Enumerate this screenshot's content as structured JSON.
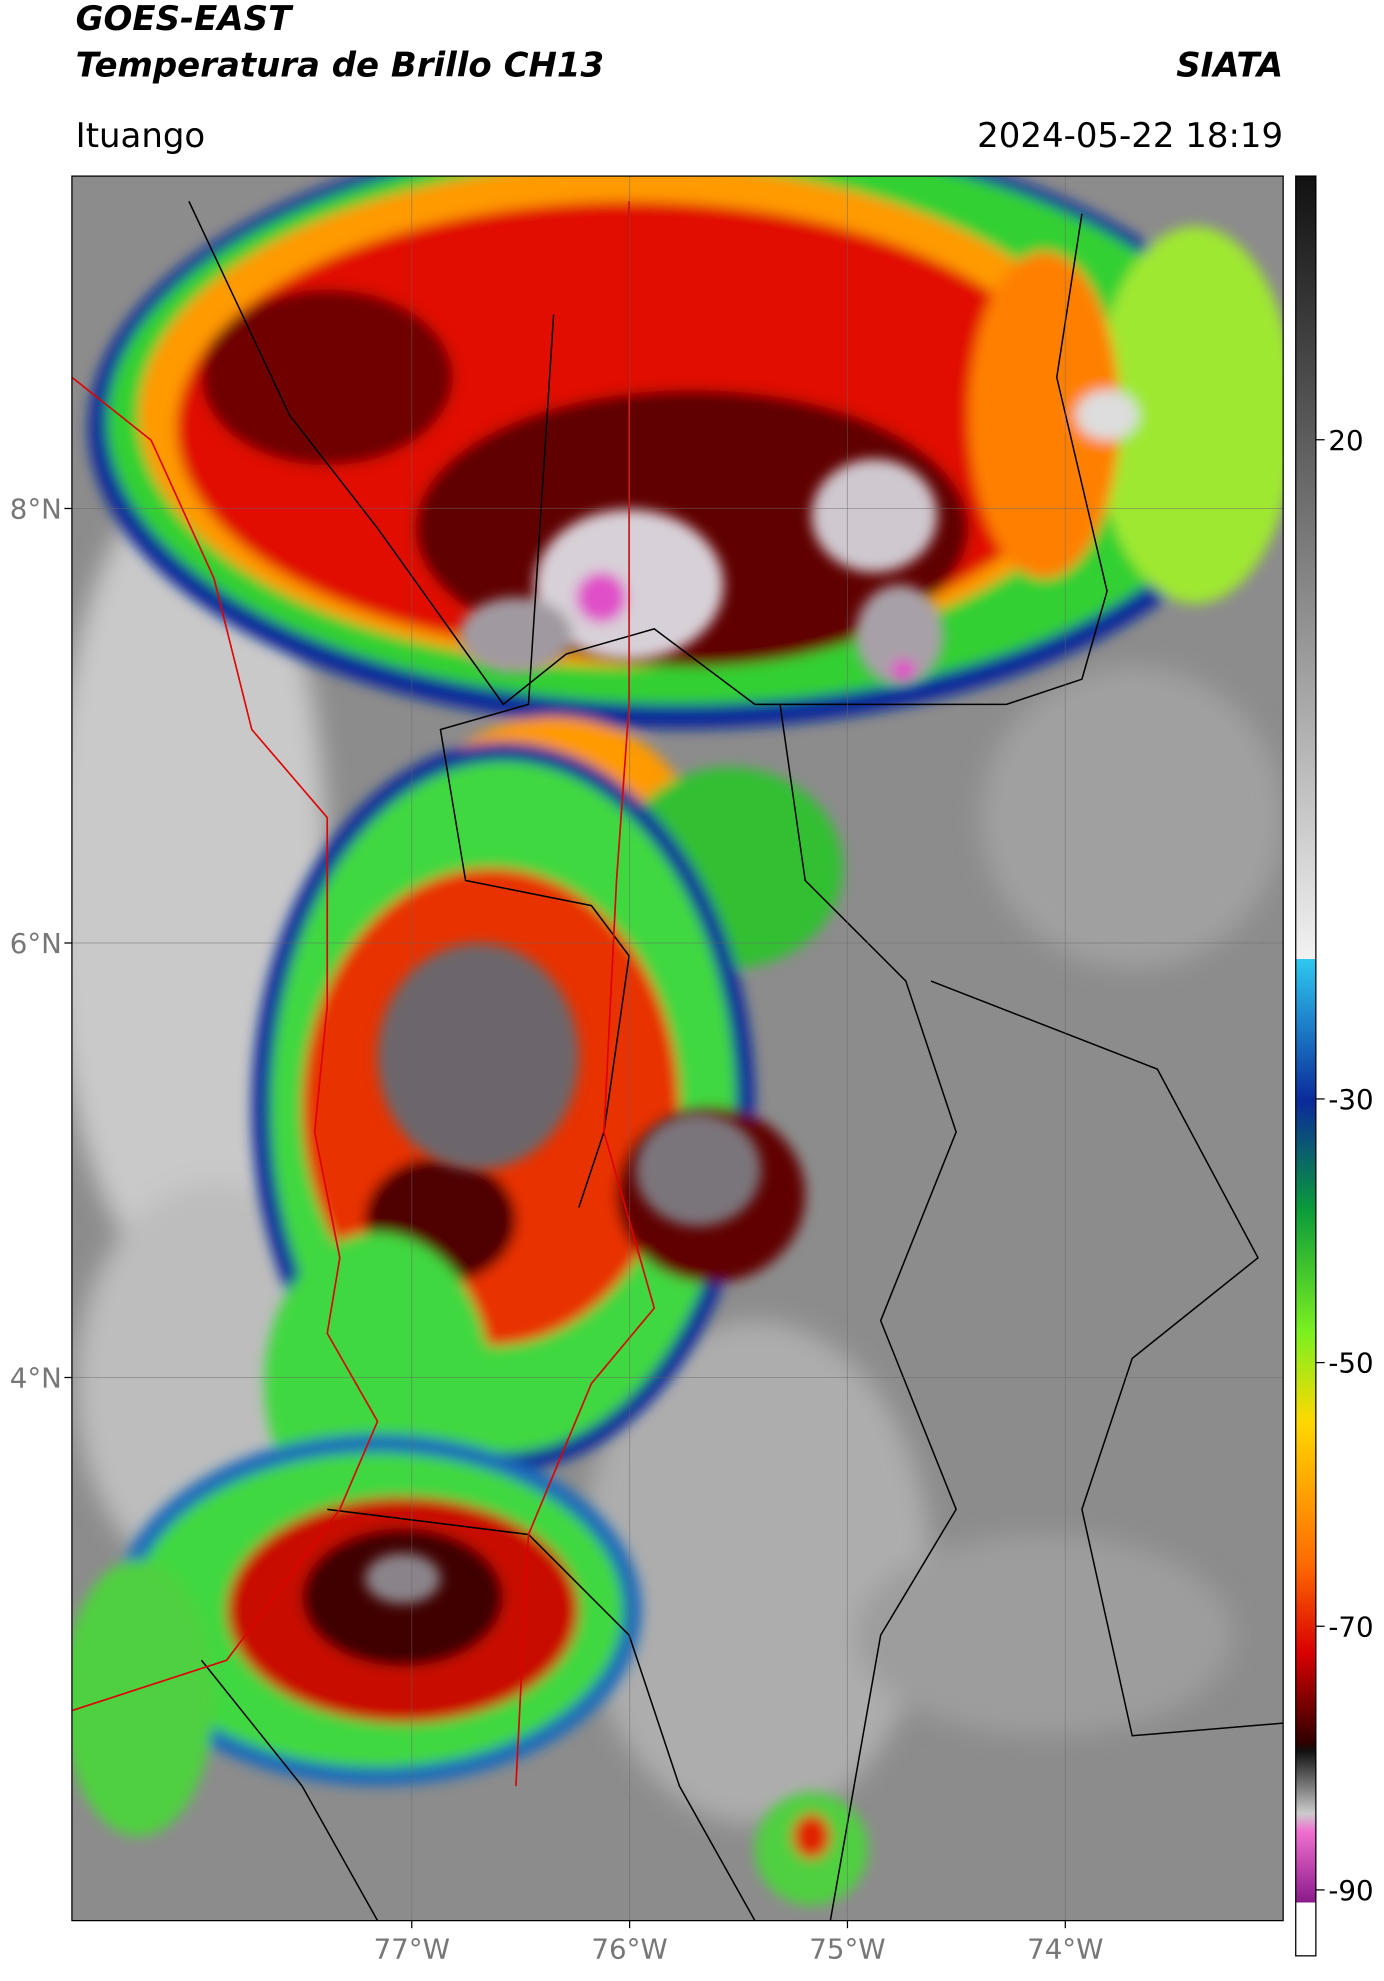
{
  "header": {
    "title": "GOES-EAST",
    "subtitle": "Temperatura de Brillo CH13",
    "source": "SIATA",
    "location": "Ituango",
    "datetime": "2024-05-22 18:19"
  },
  "map": {
    "xlim": [
      -78.56,
      -73
    ],
    "ylim": [
      1.5,
      9.53
    ],
    "xticks": [
      {
        "value": -77,
        "label": "77°W"
      },
      {
        "value": -76,
        "label": "76°W"
      },
      {
        "value": -75,
        "label": "75°W"
      },
      {
        "value": -74,
        "label": "74°W"
      }
    ],
    "yticks": [
      {
        "value": 4,
        "label": "4°N"
      },
      {
        "value": 6,
        "label": "6°N"
      },
      {
        "value": 8,
        "label": "8°N"
      }
    ],
    "grid": true
  },
  "colorbar": {
    "lim": [
      -95,
      40
    ],
    "ticks": [
      20,
      -30,
      -50,
      -70,
      -90
    ]
  }
}
